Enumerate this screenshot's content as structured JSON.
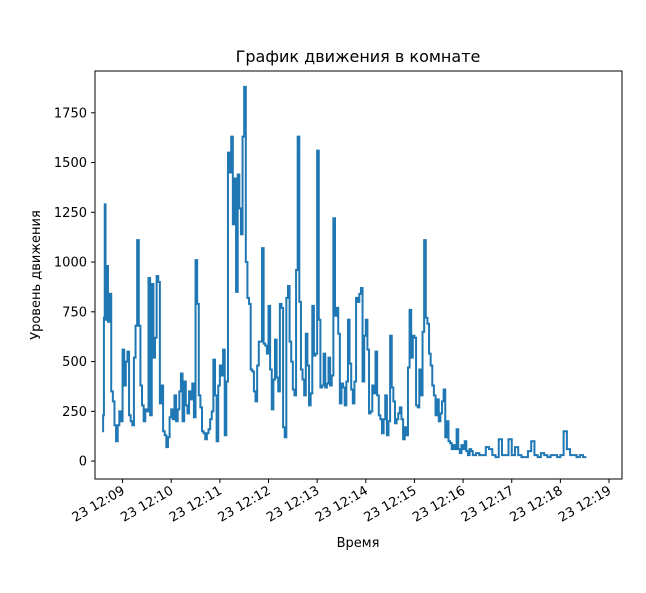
{
  "chart_data": {
    "type": "line",
    "title": "График движения в комнате",
    "xlabel": "Время",
    "ylabel": "Уровень движения",
    "ylim": [
      -90,
      1960
    ],
    "xlim": [
      "12:08:26",
      "12:19:16"
    ],
    "grid": false,
    "y_ticks": [
      0,
      250,
      500,
      750,
      1000,
      1250,
      1500,
      1750
    ],
    "x_ticks": [
      "23 12:09",
      "23 12:10",
      "23 12:11",
      "23 12:12",
      "23 12:13",
      "23 12:14",
      "23 12:15",
      "23 12:16",
      "23 12:17",
      "23 12:18",
      "23 12:19"
    ],
    "series": [
      {
        "color": "#1f77b4",
        "x": [
          "12:08:35",
          "12:08:36",
          "12:08:37",
          "12:08:38",
          "12:08:39",
          "12:08:40",
          "12:08:42",
          "12:08:44",
          "12:08:46",
          "12:08:48",
          "12:08:50",
          "12:08:52",
          "12:08:54",
          "12:08:56",
          "12:08:58",
          "12:09:00",
          "12:09:02",
          "12:09:04",
          "12:09:06",
          "12:09:08",
          "12:09:10",
          "12:09:12",
          "12:09:14",
          "12:09:16",
          "12:09:18",
          "12:09:20",
          "12:09:22",
          "12:09:24",
          "12:09:26",
          "12:09:28",
          "12:09:30",
          "12:09:32",
          "12:09:34",
          "12:09:36",
          "12:09:38",
          "12:09:40",
          "12:09:42",
          "12:09:44",
          "12:09:46",
          "12:09:48",
          "12:09:50",
          "12:09:52",
          "12:09:54",
          "12:09:56",
          "12:09:58",
          "12:10:00",
          "12:10:02",
          "12:10:04",
          "12:10:06",
          "12:10:08",
          "12:10:10",
          "12:10:12",
          "12:10:14",
          "12:10:16",
          "12:10:18",
          "12:10:20",
          "12:10:22",
          "12:10:24",
          "12:10:26",
          "12:10:28",
          "12:10:30",
          "12:10:32",
          "12:10:34",
          "12:10:36",
          "12:10:38",
          "12:10:40",
          "12:10:42",
          "12:10:44",
          "12:10:46",
          "12:10:48",
          "12:10:50",
          "12:10:52",
          "12:10:54",
          "12:10:56",
          "12:10:58",
          "12:11:00",
          "12:11:02",
          "12:11:04",
          "12:11:06",
          "12:11:08",
          "12:11:10",
          "12:11:12",
          "12:11:14",
          "12:11:16",
          "12:11:18",
          "12:11:20",
          "12:11:22",
          "12:11:24",
          "12:11:26",
          "12:11:28",
          "12:11:30",
          "12:11:32",
          "12:11:34",
          "12:11:36",
          "12:11:38",
          "12:11:40",
          "12:11:42",
          "12:11:44",
          "12:11:46",
          "12:11:48",
          "12:11:50",
          "12:11:52",
          "12:11:54",
          "12:11:56",
          "12:11:58",
          "12:12:00",
          "12:12:02",
          "12:12:04",
          "12:12:06",
          "12:12:08",
          "12:12:10",
          "12:12:12",
          "12:12:14",
          "12:12:16",
          "12:12:18",
          "12:12:20",
          "12:12:22",
          "12:12:24",
          "12:12:26",
          "12:12:28",
          "12:12:30",
          "12:12:32",
          "12:12:34",
          "12:12:36",
          "12:12:38",
          "12:12:40",
          "12:12:42",
          "12:12:44",
          "12:12:46",
          "12:12:48",
          "12:12:50",
          "12:12:52",
          "12:12:54",
          "12:12:56",
          "12:12:58",
          "12:13:00",
          "12:13:02",
          "12:13:04",
          "12:13:06",
          "12:13:08",
          "12:13:10",
          "12:13:12",
          "12:13:14",
          "12:13:16",
          "12:13:18",
          "12:13:20",
          "12:13:22",
          "12:13:24",
          "12:13:26",
          "12:13:28",
          "12:13:30",
          "12:13:32",
          "12:13:34",
          "12:13:36",
          "12:13:38",
          "12:13:40",
          "12:13:42",
          "12:13:44",
          "12:13:46",
          "12:13:48",
          "12:13:50",
          "12:13:52",
          "12:13:54",
          "12:13:56",
          "12:13:58",
          "12:14:00",
          "12:14:02",
          "12:14:04",
          "12:14:06",
          "12:14:08",
          "12:14:10",
          "12:14:12",
          "12:14:14",
          "12:14:16",
          "12:14:18",
          "12:14:20",
          "12:14:22",
          "12:14:24",
          "12:14:26",
          "12:14:28",
          "12:14:30",
          "12:14:32",
          "12:14:34",
          "12:14:36",
          "12:14:38",
          "12:14:40",
          "12:14:42",
          "12:14:44",
          "12:14:46",
          "12:14:48",
          "12:14:50",
          "12:14:52",
          "12:14:54",
          "12:14:56",
          "12:14:58",
          "12:15:00",
          "12:15:02",
          "12:15:04",
          "12:15:06",
          "12:15:08",
          "12:15:10",
          "12:15:12",
          "12:15:14",
          "12:15:16",
          "12:15:18",
          "12:15:20",
          "12:15:22",
          "12:15:24",
          "12:15:26",
          "12:15:28",
          "12:15:30",
          "12:15:32",
          "12:15:34",
          "12:15:36",
          "12:15:38",
          "12:15:40",
          "12:15:42",
          "12:15:44",
          "12:15:46",
          "12:15:48",
          "12:15:50",
          "12:15:52",
          "12:15:54",
          "12:15:56",
          "12:15:58",
          "12:16:00",
          "12:16:02",
          "12:16:04",
          "12:16:06",
          "12:16:08",
          "12:16:10",
          "12:16:12",
          "12:16:14",
          "12:16:16",
          "12:16:18",
          "12:16:20",
          "12:16:24",
          "12:16:28",
          "12:16:32",
          "12:16:36",
          "12:16:40",
          "12:16:44",
          "12:16:48",
          "12:16:52",
          "12:16:56",
          "12:17:00",
          "12:17:04",
          "12:17:08",
          "12:17:12",
          "12:17:16",
          "12:17:20",
          "12:17:24",
          "12:17:28",
          "12:17:32",
          "12:17:36",
          "12:17:40",
          "12:17:44",
          "12:17:48",
          "12:17:52",
          "12:17:56",
          "12:18:00",
          "12:18:04",
          "12:18:08",
          "12:18:12",
          "12:18:16",
          "12:18:20",
          "12:18:24",
          "12:18:28",
          "12:18:32"
        ],
        "values": [
          150,
          230,
          720,
          1290,
          710,
          980,
          700,
          840,
          350,
          300,
          180,
          100,
          180,
          250,
          200,
          560,
          380,
          500,
          550,
          230,
          200,
          180,
          520,
          680,
          1110,
          680,
          380,
          280,
          200,
          260,
          250,
          920,
          230,
          890,
          520,
          620,
          930,
          900,
          290,
          380,
          150,
          130,
          70,
          120,
          220,
          260,
          210,
          330,
          200,
          260,
          350,
          440,
          200,
          400,
          280,
          240,
          350,
          310,
          390,
          220,
          1010,
          790,
          330,
          270,
          150,
          140,
          110,
          140,
          160,
          210,
          250,
          510,
          330,
          100,
          380,
          480,
          430,
          560,
          130,
          400,
          1550,
          1450,
          1630,
          1190,
          1420,
          850,
          1440,
          1270,
          1140,
          1630,
          1880,
          1000,
          820,
          790,
          460,
          450,
          350,
          300,
          480,
          600,
          600,
          1070,
          590,
          580,
          540,
          780,
          460,
          260,
          410,
          610,
          420,
          350,
          790,
          770,
          170,
          120,
          820,
          880,
          600,
          500,
          360,
          330,
          960,
          1630,
          800,
          460,
          410,
          330,
          640,
          480,
          280,
          340,
          780,
          530,
          540,
          1560,
          710,
          370,
          380,
          540,
          370,
          390,
          520,
          380,
          430,
          1220,
          730,
          770,
          640,
          290,
          390,
          370,
          280,
          400,
          710,
          490,
          360,
          290,
          400,
          820,
          800,
          840,
          870,
          400,
          630,
          710,
          560,
          240,
          250,
          380,
          340,
          550,
          330,
          230,
          210,
          140,
          210,
          330,
          130,
          200,
          630,
          370,
          300,
          190,
          210,
          240,
          270,
          210,
          110,
          170,
          130,
          470,
          760,
          520,
          630,
          620,
          280,
          270,
          460,
          330,
          650,
          1110,
          720,
          690,
          540,
          480,
          380,
          330,
          230,
          310,
          200,
          240,
          300,
          360,
          120,
          200,
          100,
          90,
          60,
          80,
          60,
          160,
          60,
          40,
          80,
          60,
          100,
          50,
          30,
          60,
          50,
          30,
          30,
          40,
          40,
          30,
          30,
          70,
          60,
          30,
          20,
          110,
          30,
          30,
          110,
          30,
          70,
          30,
          20,
          20,
          50,
          100,
          30,
          20,
          40,
          30,
          20,
          30,
          30,
          20,
          30,
          150,
          60,
          30,
          30,
          20,
          30,
          20,
          20
        ]
      }
    ]
  }
}
